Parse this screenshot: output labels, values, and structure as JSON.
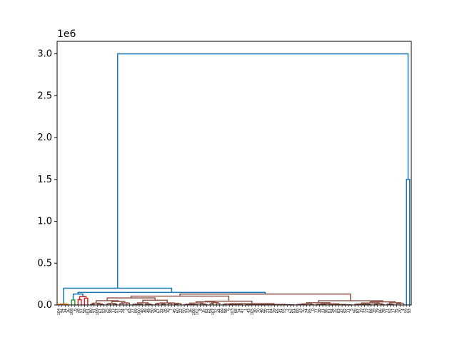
{
  "chart_data": {
    "type": "dendrogram",
    "title": "",
    "xlabel": "",
    "ylabel": "",
    "y_offset_label": "1e6",
    "ylim": [
      0,
      3150000
    ],
    "yticks": [
      "0.0",
      "0.5",
      "1.0",
      "1.5",
      "2.0",
      "2.5",
      "3.0"
    ],
    "ytick_values": [
      0,
      500000,
      1000000,
      1500000,
      2000000,
      2500000,
      3000000
    ],
    "grid": false,
    "leaf_count": 110,
    "leaves": [
      "104",
      "94",
      "14",
      "36",
      "108",
      "6",
      "28",
      "97",
      "58",
      "101",
      "80",
      "91",
      "109",
      "61",
      "53",
      "25",
      "99",
      "13",
      "57",
      "12",
      "24",
      "3",
      "63",
      "27",
      "69",
      "100",
      "40",
      "48",
      "49",
      "90",
      "18",
      "67",
      "32",
      "26",
      "10",
      "7",
      "45",
      "60",
      "22",
      "50",
      "33",
      "16",
      "106",
      "102",
      "8",
      "15",
      "82",
      "64",
      "107",
      "72",
      "44",
      "89",
      "98",
      "9",
      "103",
      "68",
      "34",
      "47",
      "1",
      "43",
      "105",
      "30",
      "70",
      "46",
      "96",
      "21",
      "84",
      "29",
      "65",
      "41",
      "55",
      "2",
      "62",
      "51",
      "88",
      "23",
      "76",
      "74",
      "85",
      "0",
      "77",
      "38",
      "31",
      "95",
      "81",
      "54",
      "35",
      "83",
      "42",
      "92",
      "11",
      "5",
      "56",
      "87",
      "19",
      "73",
      "37",
      "66",
      "39",
      "79",
      "86",
      "78",
      "71",
      "52",
      "17",
      "75",
      "20",
      "4",
      "59",
      "93"
    ],
    "colors": {
      "above_threshold": "#1f77b4",
      "cluster_orange": "#ff7f0e",
      "cluster_green": "#2ca02c",
      "cluster_red": "#d62728",
      "cluster_brown": "#8c564b"
    },
    "merges": [
      {
        "height": 3000000,
        "color": "above_threshold"
      },
      {
        "height": 1500000,
        "color": "above_threshold"
      },
      {
        "height": 200000,
        "color": "above_threshold"
      },
      {
        "height": 150000,
        "color": "above_threshold"
      },
      {
        "height": 130000,
        "color": "cluster_brown"
      },
      {
        "height": 110000,
        "color": "cluster_brown"
      },
      {
        "height": 100000,
        "color": "cluster_red"
      },
      {
        "height": 70000,
        "color": "cluster_red"
      },
      {
        "height": 60000,
        "color": "cluster_green"
      }
    ]
  }
}
